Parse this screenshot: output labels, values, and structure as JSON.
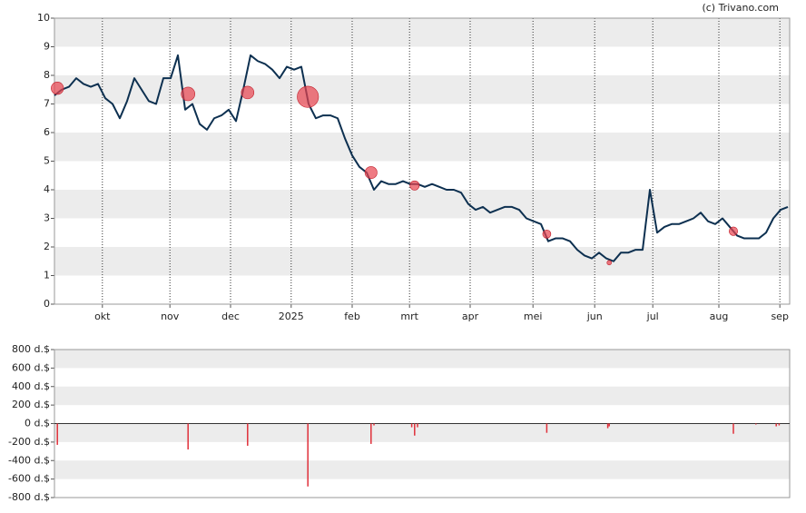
{
  "chart_data": [
    {
      "type": "line",
      "credit": "(c) Trivano.com",
      "color": "#0d3050",
      "marker_color": "#e8434f",
      "x": [
        0,
        1,
        2,
        3,
        4,
        5,
        6,
        7,
        8,
        9,
        10,
        11,
        12,
        13,
        14,
        15,
        16,
        17,
        18,
        19,
        20,
        21,
        22,
        23,
        24,
        25,
        26,
        27,
        28,
        29,
        30,
        31,
        32,
        33,
        34,
        35,
        36,
        37,
        38,
        39,
        40,
        41,
        42,
        43,
        44,
        45,
        46,
        47,
        48,
        49,
        50,
        51,
        52,
        53,
        54,
        55,
        56,
        57,
        58,
        59,
        60,
        61,
        62,
        63,
        64,
        65,
        66,
        67,
        68,
        69,
        70,
        71,
        72,
        73,
        74,
        75,
        76,
        77,
        78,
        79,
        80,
        81,
        82,
        83,
        84,
        85,
        86,
        87,
        88,
        89,
        90,
        91,
        92,
        93,
        94,
        95,
        96,
        97,
        98,
        99,
        100,
        101
      ],
      "values": [
        7.3,
        7.5,
        7.6,
        7.9,
        7.7,
        7.6,
        7.7,
        7.2,
        7.0,
        6.5,
        7.1,
        7.9,
        7.5,
        7.1,
        7.0,
        7.9,
        7.9,
        8.7,
        6.8,
        7.0,
        6.3,
        6.1,
        6.5,
        6.6,
        6.8,
        6.4,
        7.5,
        8.7,
        8.5,
        8.4,
        8.2,
        7.9,
        8.3,
        8.2,
        8.3,
        7.0,
        6.5,
        6.6,
        6.6,
        6.5,
        5.8,
        5.2,
        4.8,
        4.6,
        4.0,
        4.3,
        4.2,
        4.2,
        4.3,
        4.2,
        4.2,
        4.1,
        4.2,
        4.1,
        4.0,
        4.0,
        3.9,
        3.5,
        3.3,
        3.4,
        3.2,
        3.3,
        3.4,
        3.4,
        3.3,
        3.0,
        2.9,
        2.8,
        2.2,
        2.3,
        2.3,
        2.2,
        1.9,
        1.7,
        1.6,
        1.8,
        1.6,
        1.5,
        1.8,
        1.8,
        1.9,
        1.9,
        4.0,
        2.5,
        2.7,
        2.8,
        2.8,
        2.9,
        3.0,
        3.2,
        2.9,
        2.8,
        3.0,
        2.7,
        2.4,
        2.3,
        2.3,
        2.3,
        2.5,
        3.0,
        3.3,
        3.4
      ],
      "markers": {
        "x": [
          0.4,
          18.4,
          26.6,
          34.9,
          43.6,
          49.6,
          67.8,
          76.4,
          93.5
        ],
        "values": [
          7.55,
          7.35,
          7.4,
          7.25,
          4.6,
          4.15,
          2.45,
          1.45,
          2.55
        ]
      },
      "xlim": [
        0,
        101.25
      ],
      "ylim": [
        0,
        10
      ],
      "yticks": [
        0,
        1,
        2,
        3,
        4,
        5,
        6,
        7,
        8,
        9,
        10
      ],
      "xticks": [
        {
          "value": 6.6,
          "label": "okt"
        },
        {
          "value": 15.9,
          "label": "nov"
        },
        {
          "value": 24.25,
          "label": "dec"
        },
        {
          "value": 32.6,
          "label": "2025"
        },
        {
          "value": 41,
          "label": "feb"
        },
        {
          "value": 48.9,
          "label": "mrt"
        },
        {
          "value": 57.25,
          "label": "apr"
        },
        {
          "value": 65.9,
          "label": "mei"
        },
        {
          "value": 74.4,
          "label": "jun"
        },
        {
          "value": 82.4,
          "label": "jul"
        },
        {
          "value": 91.5,
          "label": "aug"
        },
        {
          "value": 99.9,
          "label": "sep"
        }
      ]
    },
    {
      "type": "bar",
      "color": "#e0303a",
      "x": [
        0.4,
        18.4,
        26.6,
        34.9,
        43.6,
        44.0,
        49.2,
        49.6,
        50.0,
        67.8,
        76.2,
        76.4,
        93.5,
        96.6,
        99.4,
        99.8
      ],
      "values": [
        -230,
        -280,
        -240,
        -680,
        -220,
        -20,
        -40,
        -130,
        -40,
        -100,
        -50,
        -30,
        -110,
        -10,
        -30,
        -20
      ],
      "xlim": [
        0,
        101.25
      ],
      "ylim": [
        -800,
        800
      ],
      "yticks": [
        {
          "value": -800,
          "label": "-800 d.$"
        },
        {
          "value": -600,
          "label": "-600 d.$"
        },
        {
          "value": -400,
          "label": "-400 d.$"
        },
        {
          "value": -200,
          "label": "-200 d.$"
        },
        {
          "value": 0,
          "label": "0 d.$"
        },
        {
          "value": 200,
          "label": "200 d.$"
        },
        {
          "value": 400,
          "label": "400 d.$"
        },
        {
          "value": 600,
          "label": "600 d.$"
        },
        {
          "value": 800,
          "label": "800 d.$"
        }
      ]
    }
  ]
}
